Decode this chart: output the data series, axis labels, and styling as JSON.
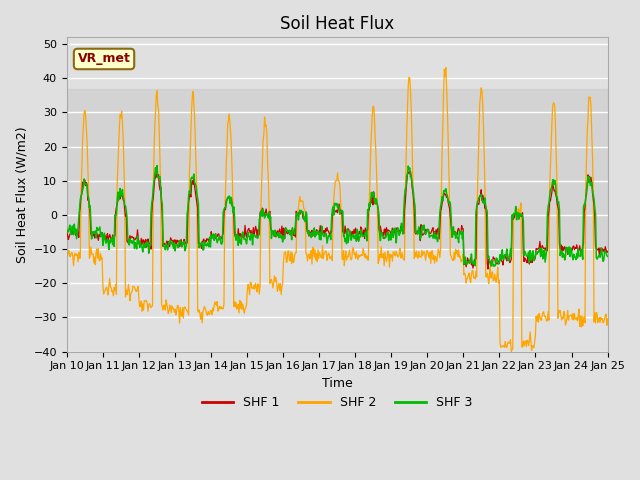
{
  "title": "Soil Heat Flux",
  "xlabel": "Time",
  "ylabel": "Soil Heat Flux (W/m2)",
  "ylim": [
    -40,
    52
  ],
  "yticks": [
    -40,
    -30,
    -20,
    -10,
    0,
    10,
    20,
    30,
    40,
    50
  ],
  "shf1_color": "#cc0000",
  "shf2_color": "#ffa500",
  "shf3_color": "#00bb00",
  "fig_bg": "#e0e0e0",
  "plot_bg": "#e0e0e0",
  "band_color": "#c8c8c8",
  "grid_color": "#ffffff",
  "legend_label1": "SHF 1",
  "legend_label2": "SHF 2",
  "legend_label3": "SHF 3",
  "annotation_text": "VR_met",
  "title_fontsize": 12,
  "label_fontsize": 9,
  "tick_fontsize": 8
}
